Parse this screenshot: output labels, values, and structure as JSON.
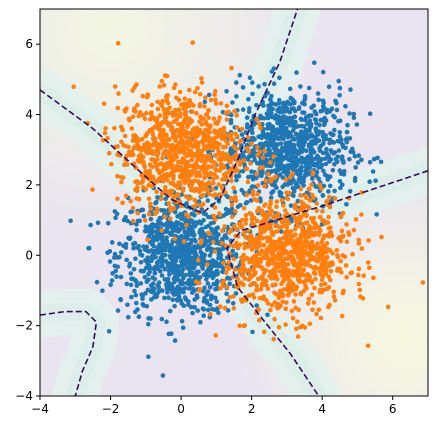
{
  "chart_data": {
    "type": "scatter",
    "title": "",
    "xlabel": "",
    "ylabel": "",
    "xlim": [
      -4,
      7
    ],
    "ylim": [
      -4,
      7
    ],
    "grid": false,
    "legend": "none",
    "x_ticks": [
      -4,
      -2,
      0,
      2,
      4,
      6
    ],
    "y_ticks": [
      -4,
      -2,
      0,
      2,
      4,
      6
    ],
    "x_tick_labels": [
      "−4",
      "−2",
      "0",
      "2",
      "4",
      "6"
    ],
    "y_tick_labels": [
      "−4",
      "−2",
      "0",
      "2",
      "4",
      "6"
    ],
    "series": [
      {
        "color": "#1f77b4",
        "clusters": [
          {
            "center": [
              0,
              0
            ],
            "spread": [
              0.9,
              0.85
            ],
            "count": 900
          },
          {
            "center": [
              3,
              3
            ],
            "spread": [
              0.9,
              0.85
            ],
            "count": 900
          }
        ]
      },
      {
        "color": "#ff7f0e",
        "clusters": [
          {
            "center": [
              0,
              3
            ],
            "spread": [
              0.9,
              0.85
            ],
            "count": 900
          },
          {
            "center": [
              3,
              0
            ],
            "spread": [
              0.9,
              0.85
            ],
            "count": 900
          }
        ]
      }
    ],
    "decision_boundary": {
      "style": "dashed",
      "color": "#3b0a5e",
      "curves": [
        [
          [
            -4.0,
            4.7
          ],
          [
            -2.5,
            3.6
          ],
          [
            -1.3,
            2.5
          ],
          [
            -0.3,
            1.6
          ],
          [
            0.6,
            1.2
          ],
          [
            1.1,
            1.6
          ],
          [
            1.6,
            2.7
          ],
          [
            2.1,
            4.0
          ],
          [
            2.8,
            5.5
          ],
          [
            3.3,
            7.0
          ]
        ],
        [
          [
            7.0,
            2.4
          ],
          [
            5.5,
            1.9
          ],
          [
            4.0,
            1.4
          ],
          [
            2.7,
            1.0
          ],
          [
            1.7,
            0.7
          ],
          [
            1.3,
            0.2
          ],
          [
            1.6,
            -0.9
          ],
          [
            2.3,
            -1.8
          ],
          [
            3.1,
            -2.8
          ],
          [
            3.9,
            -4.0
          ]
        ],
        [
          [
            -4.0,
            -1.7
          ],
          [
            -3.3,
            -1.6
          ],
          [
            -2.7,
            -1.6
          ],
          [
            -2.4,
            -1.9
          ],
          [
            -2.5,
            -2.6
          ],
          [
            -2.8,
            -3.3
          ],
          [
            -3.0,
            -4.0
          ]
        ]
      ]
    },
    "background": {
      "type": "filled-contour",
      "colors": [
        "#e9e4f0",
        "#e3f1ec",
        "#f7f8e3"
      ]
    }
  }
}
